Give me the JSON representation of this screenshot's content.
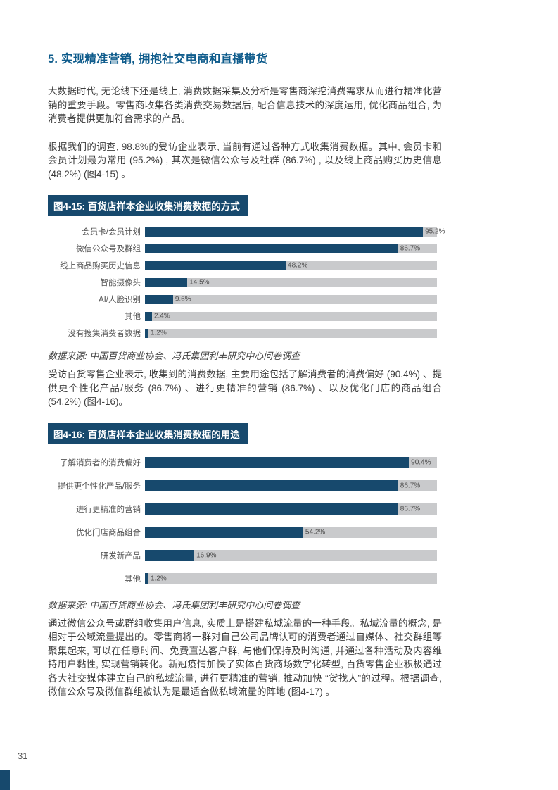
{
  "page": {
    "number": "31"
  },
  "colors": {
    "brand_navy": "#17496d",
    "heading_blue": "#0f5c8c",
    "track_gray": "#c9cacc",
    "body_text": "#3d3d3d"
  },
  "heading": {
    "text": "5. 实现精准营销, 拥抱社交电商和直播带货"
  },
  "paragraphs": {
    "p1": "大数据时代, 无论线下还是线上, 消费数据采集及分析是零售商深挖消费需求从而进行精准化营销的重要手段。零售商收集各类消费交易数据后, 配合信息技术的深度运用, 优化商品组合, 为消费者提供更加符合需求的产品。",
    "p2": "根据我们的调查, 98.8%的受访企业表示, 当前有通过各种方式收集消费数据。其中, 会员卡和会员计划最为常用 (95.2%) , 其次是微信公众号及社群 (86.7%) , 以及线上商品购买历史信息 (48.2%)  (图4-15) 。",
    "p3": "受访百货零售企业表示, 收集到的消费数据, 主要用途包括了解消费者的消费偏好 (90.4%) 、提供更个性化产品/服务 (86.7%) 、进行更精准的营销 (86.7%) 、以及优化门店的商品组合 (54.2%) (图4-16)。",
    "p4": "通过微信公众号或群组收集用户信息, 实质上是搭建私域流量的一种手段。私域流量的概念, 是相对于公域流量提出的。零售商将一群对自己公司品牌认可的消费者通过自媒体、社交群组等聚集起来, 可以在任意时间、免费直达客户群, 与他们保持及时沟通, 并通过各种活动及内容维持用户黏性, 实现营销转化。新冠疫情加快了实体百货商场数字化转型, 百货零售企业积极通过各大社交媒体建立自己的私域流量, 进行更精准的营销, 推动加快 “货找人”的过程。根据调查, 微信公众号及微信群组被认为是最适合做私域流量的阵地 (图4-17) 。"
  },
  "chart_data": [
    {
      "type": "bar",
      "orientation": "horizontal",
      "title": "图4-15: 百货店样本企业收集消费数据的方式",
      "categories": [
        "会员卡/会员计划",
        "微信公众号及群组",
        "线上商品购买历史信息",
        "智能摄像头",
        "AI/人脸识别",
        "其他",
        "没有搜集消费者数据"
      ],
      "values": [
        95.2,
        86.7,
        48.2,
        14.5,
        9.6,
        2.4,
        1.2
      ],
      "value_labels": [
        "95.2%",
        "86.7%",
        "48.2%",
        "14.5%",
        "9.6%",
        "2.4%",
        "1.2%"
      ],
      "xlim": [
        0,
        100
      ],
      "bar_color": "#17496d",
      "track_color": "#c9cacc",
      "source": "数据来源: 中国百货商业协会、冯氏集团利丰研究中心问卷调查"
    },
    {
      "type": "bar",
      "orientation": "horizontal",
      "title": "图4-16: 百货店样本企业收集消费数据的用途",
      "categories": [
        "了解消费者的消费偏好",
        "提供更个性化产品/服务",
        "进行更精准的营销",
        "优化门店商品组合",
        "研发新产品",
        "其他"
      ],
      "values": [
        90.4,
        86.7,
        86.7,
        54.2,
        16.9,
        1.2
      ],
      "value_labels": [
        "90.4%",
        "86.7%",
        "86.7%",
        "54.2%",
        "16.9%",
        "1.2%"
      ],
      "xlim": [
        0,
        100
      ],
      "bar_color": "#17496d",
      "track_color": "#c9cacc",
      "source": "数据来源: 中国百货商业协会、冯氏集团利丰研究中心问卷调查"
    }
  ]
}
